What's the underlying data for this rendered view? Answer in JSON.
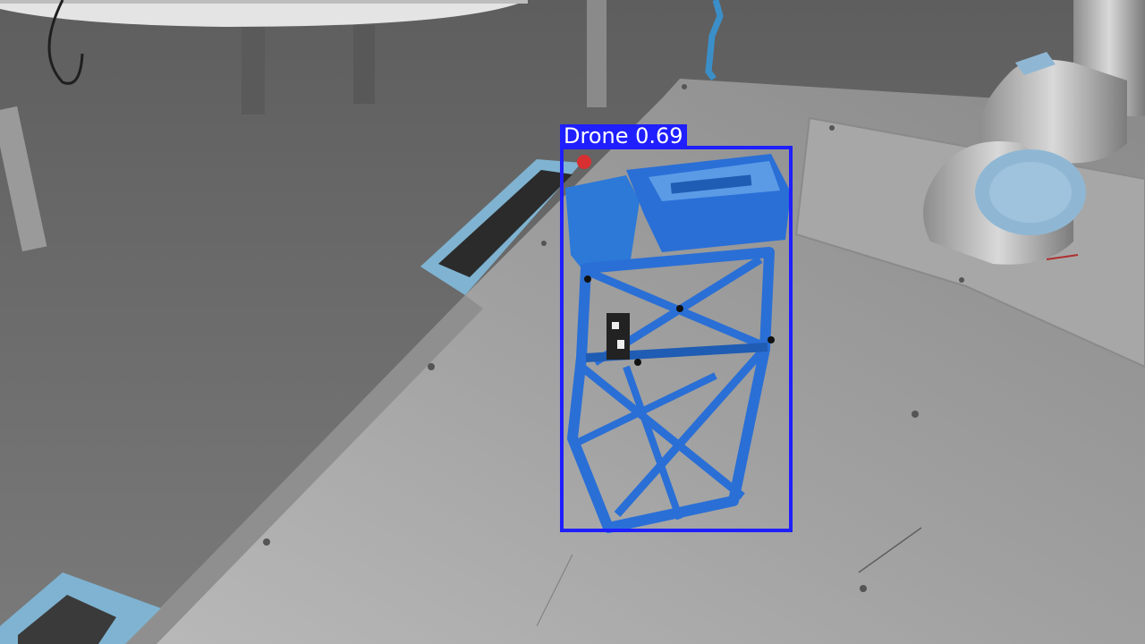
{
  "detection": {
    "class_label": "Drone",
    "confidence": "0.69",
    "box_color": "#1f1fff",
    "label_text_color": "#ffffff"
  },
  "colors": {
    "floor": "#6f6f6f",
    "table_metal": "#9c9c9c",
    "structure_blue": "#2a6fd6",
    "robot_cap": "#8fb7d4"
  }
}
